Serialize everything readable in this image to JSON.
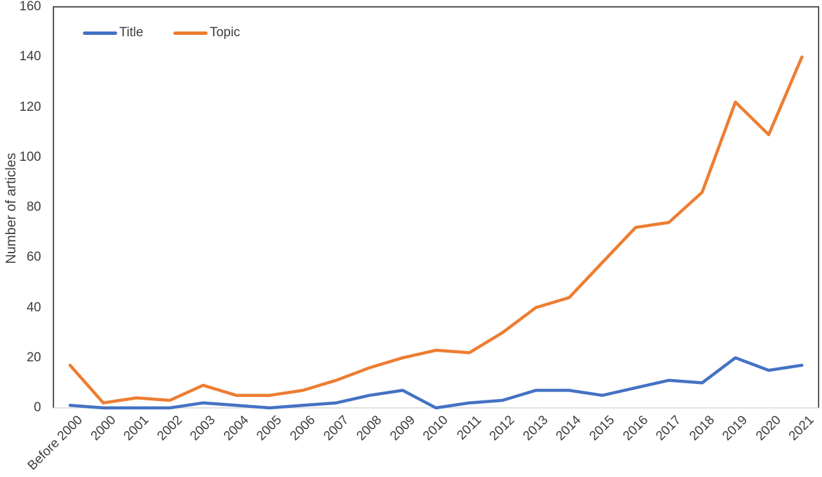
{
  "chart_data": {
    "type": "line",
    "title": "",
    "xlabel": "",
    "ylabel": "Number of articles",
    "ylim": [
      0,
      160
    ],
    "yticks": [
      0,
      20,
      40,
      60,
      80,
      100,
      120,
      140,
      160
    ],
    "grid": false,
    "legend_position": "top-left-inside",
    "categories": [
      "Before 2000",
      "2000",
      "2001",
      "2002",
      "2003",
      "2004",
      "2005",
      "2006",
      "2007",
      "2008",
      "2009",
      "2010",
      "2011",
      "2012",
      "2013",
      "2014",
      "2015",
      "2016",
      "2017",
      "2018",
      "2019",
      "2020",
      "2021"
    ],
    "series": [
      {
        "name": "Title",
        "color": "#4472C4",
        "values": [
          1,
          0,
          0,
          0,
          2,
          1,
          0,
          1,
          2,
          5,
          7,
          0,
          2,
          3,
          7,
          7,
          5,
          8,
          11,
          10,
          20,
          15,
          17
        ]
      },
      {
        "name": "Topic",
        "color": "#ED7D31",
        "values": [
          17,
          2,
          4,
          3,
          9,
          5,
          5,
          7,
          11,
          16,
          20,
          23,
          22,
          30,
          40,
          44,
          58,
          72,
          74,
          86,
          122,
          109,
          140
        ]
      }
    ],
    "styles": {
      "plot_border_color": "#1f1f1f",
      "baseline_color": "#d9d9d9",
      "text_color": "#3d3d3d"
    }
  }
}
